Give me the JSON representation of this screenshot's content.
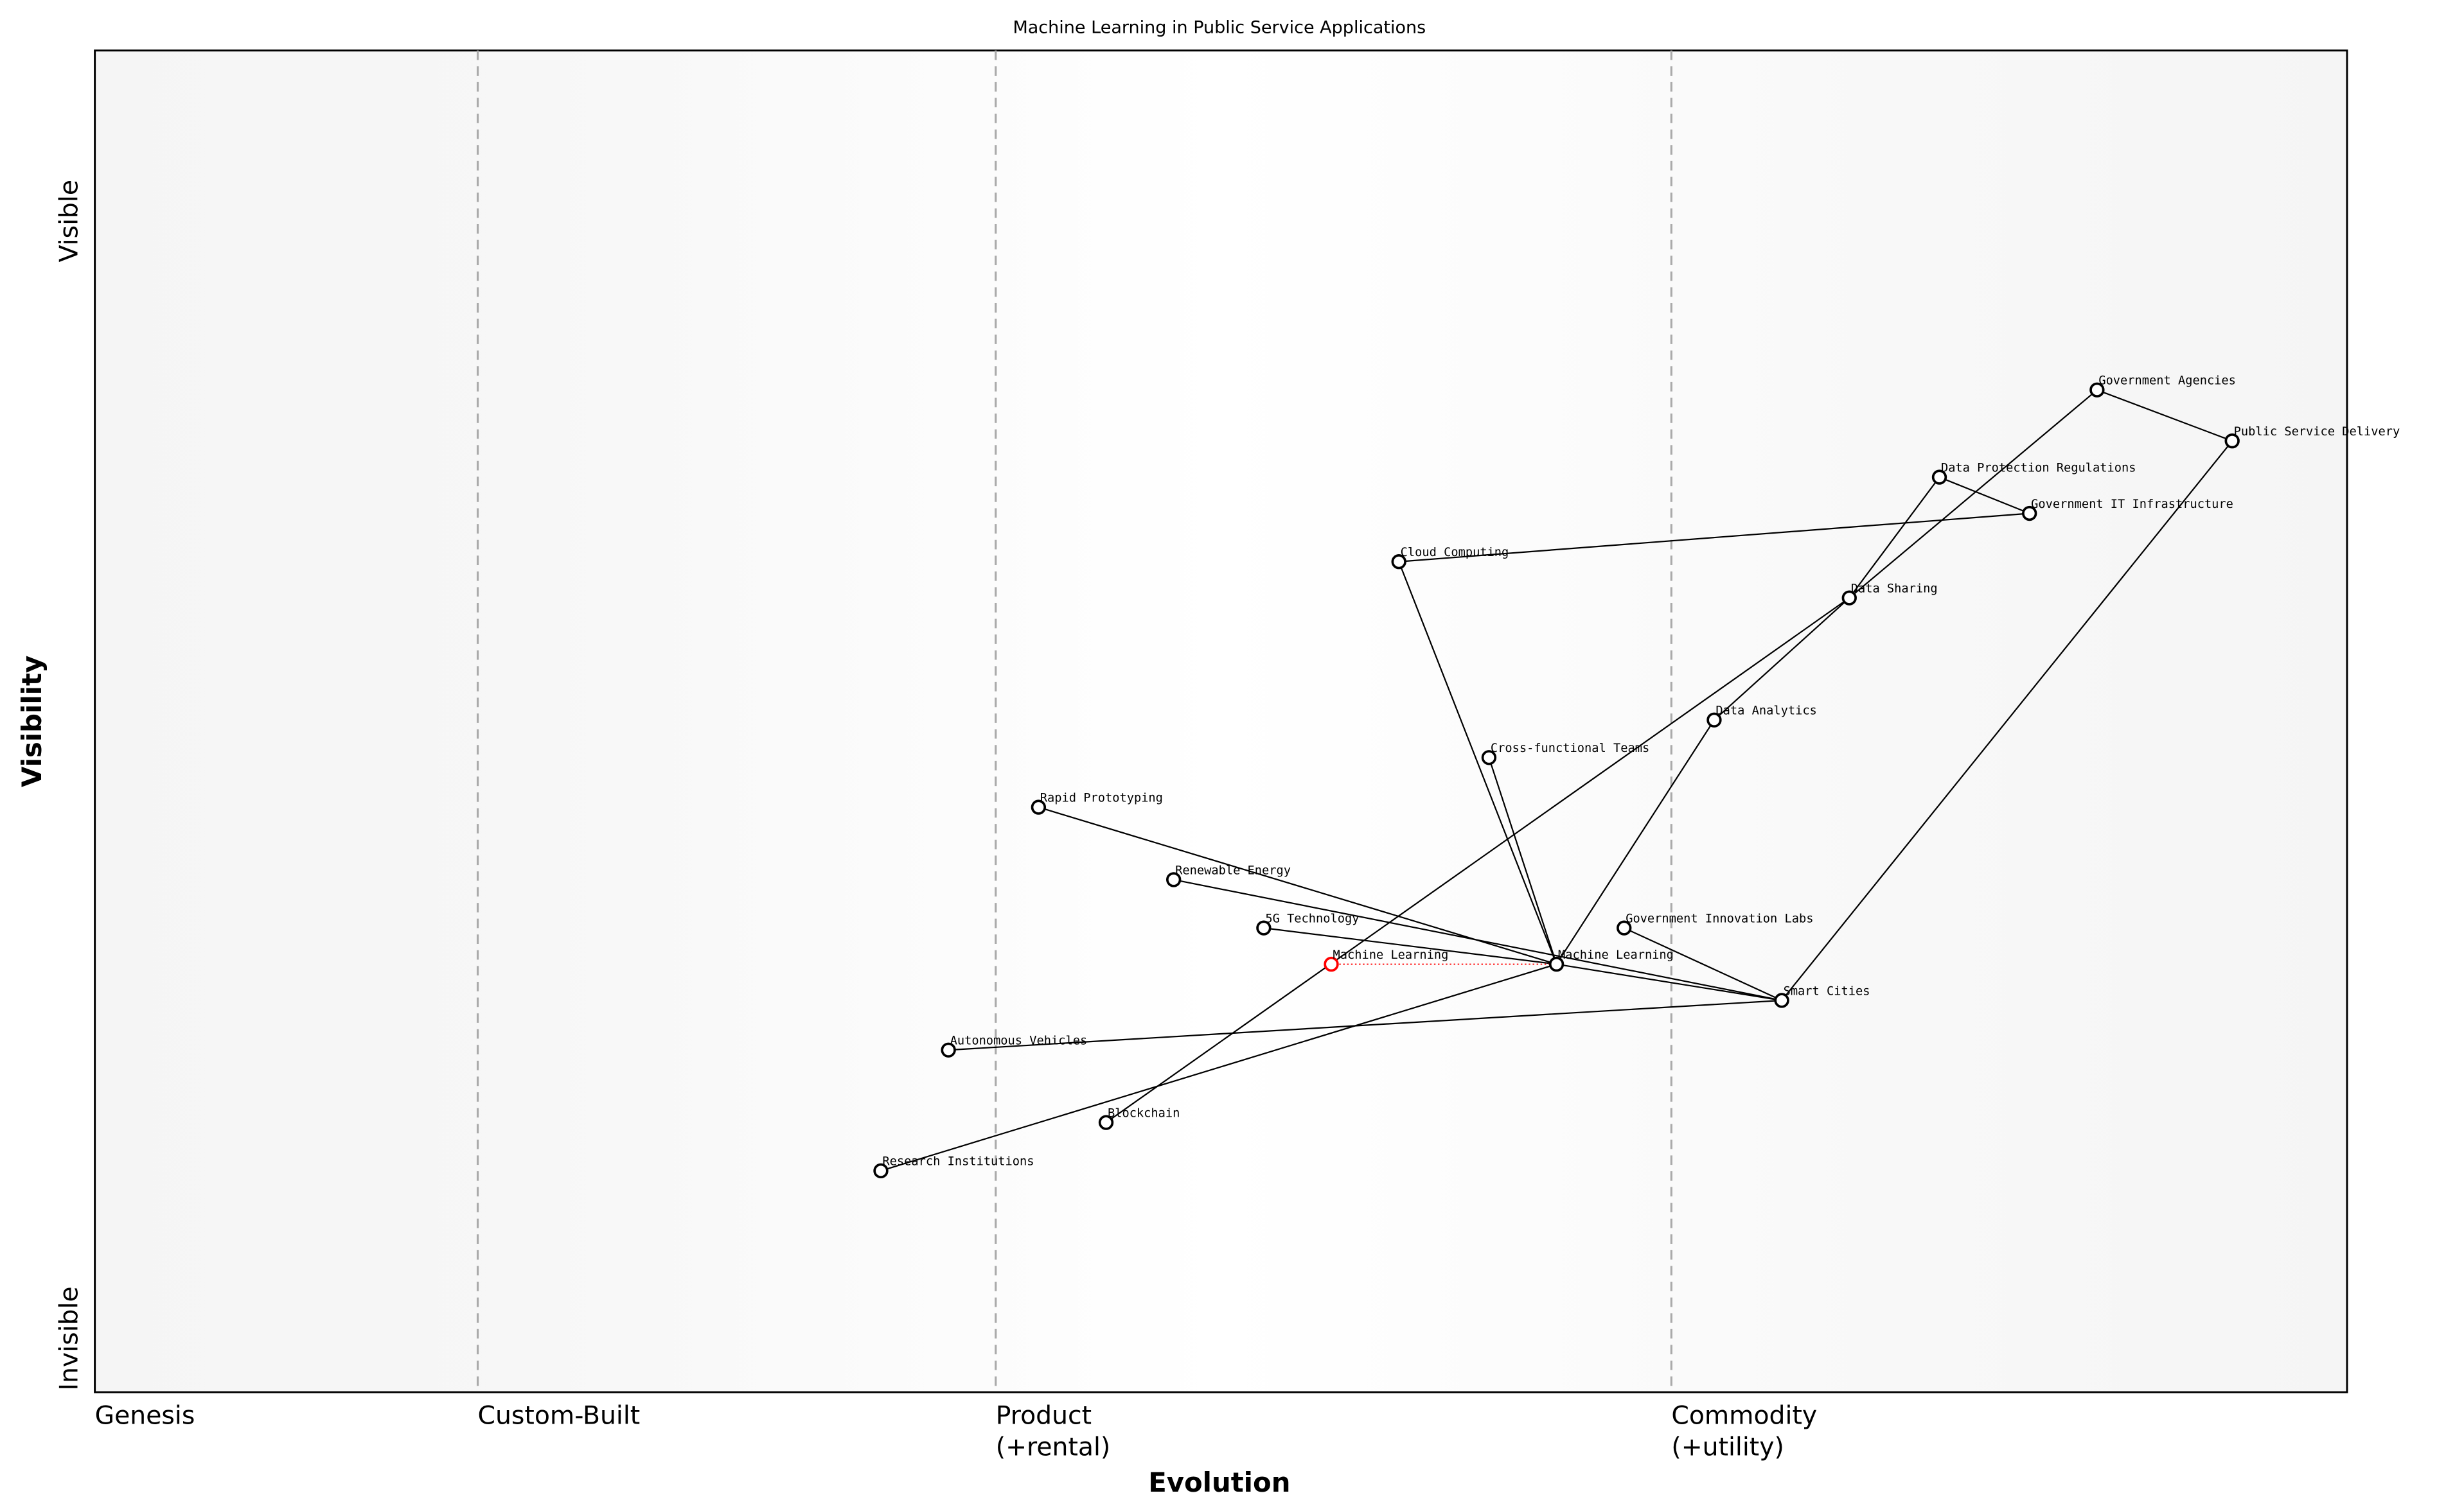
{
  "title": "Machine Learning in Public Service Applications",
  "axes": {
    "x_label": "Evolution",
    "y_label": "Visibility",
    "y_top": "Visible",
    "y_bottom": "Invisible",
    "stages": [
      {
        "line1": "Genesis",
        "line2": "",
        "evolution": 0.0
      },
      {
        "line1": "Custom-Built",
        "line2": "",
        "evolution": 0.17
      },
      {
        "line1": "Product",
        "line2": "(+rental)",
        "evolution": 0.4
      },
      {
        "line1": "Commodity",
        "line2": "(+utility)",
        "evolution": 0.7
      }
    ]
  },
  "colors": {
    "node": "#000000",
    "highlight": "#ff0000",
    "divider": "#aaaaaa",
    "band": "#f5f5f5"
  },
  "components": [
    {
      "id": "ga",
      "name": "Government Agencies",
      "evolution": 0.889,
      "visibility": 0.747
    },
    {
      "id": "psd",
      "name": "Public Service Delivery",
      "evolution": 0.949,
      "visibility": 0.709
    },
    {
      "id": "dpr",
      "name": "Data Protection Regulations",
      "evolution": 0.819,
      "visibility": 0.682
    },
    {
      "id": "giti",
      "name": "Government IT Infrastructure",
      "evolution": 0.859,
      "visibility": 0.655
    },
    {
      "id": "cc",
      "name": "Cloud Computing",
      "evolution": 0.579,
      "visibility": 0.619
    },
    {
      "id": "ds",
      "name": "Data Sharing",
      "evolution": 0.779,
      "visibility": 0.592
    },
    {
      "id": "da",
      "name": "Data Analytics",
      "evolution": 0.719,
      "visibility": 0.501
    },
    {
      "id": "cft",
      "name": "Cross-functional Teams",
      "evolution": 0.619,
      "visibility": 0.473
    },
    {
      "id": "rp",
      "name": "Rapid Prototyping",
      "evolution": 0.419,
      "visibility": 0.436
    },
    {
      "id": "re",
      "name": "Renewable Energy",
      "evolution": 0.479,
      "visibility": 0.382
    },
    {
      "id": "g5",
      "name": "5G Technology",
      "evolution": 0.519,
      "visibility": 0.346
    },
    {
      "id": "gil",
      "name": "Government Innovation Labs",
      "evolution": 0.679,
      "visibility": 0.346
    },
    {
      "id": "ml",
      "name": "Machine Learning",
      "evolution": 0.649,
      "visibility": 0.319
    },
    {
      "id": "mlr",
      "name": "Machine Learning",
      "evolution": 0.549,
      "visibility": 0.319,
      "highlight": true
    },
    {
      "id": "sc",
      "name": "Smart Cities",
      "evolution": 0.749,
      "visibility": 0.292
    },
    {
      "id": "av",
      "name": "Autonomous Vehicles",
      "evolution": 0.379,
      "visibility": 0.255
    },
    {
      "id": "bc",
      "name": "Blockchain",
      "evolution": 0.449,
      "visibility": 0.201
    },
    {
      "id": "ri",
      "name": "Research Institutions",
      "evolution": 0.349,
      "visibility": 0.165
    }
  ],
  "links": [
    [
      "ga",
      "psd"
    ],
    [
      "ga",
      "ds"
    ],
    [
      "dpr",
      "giti"
    ],
    [
      "dpr",
      "ds"
    ],
    [
      "giti",
      "cc"
    ],
    [
      "cc",
      "ml"
    ],
    [
      "cft",
      "ml"
    ],
    [
      "ds",
      "da"
    ],
    [
      "da",
      "ml"
    ],
    [
      "ds",
      "bc"
    ],
    [
      "ml",
      "ri"
    ],
    [
      "rp",
      "ml"
    ],
    [
      "re",
      "sc"
    ],
    [
      "g5",
      "ml"
    ],
    [
      "ml",
      "sc"
    ],
    [
      "av",
      "sc"
    ],
    [
      "gil",
      "sc"
    ],
    [
      "sc",
      "psd"
    ]
  ],
  "evolution_links": [
    [
      "mlr",
      "ml"
    ]
  ]
}
